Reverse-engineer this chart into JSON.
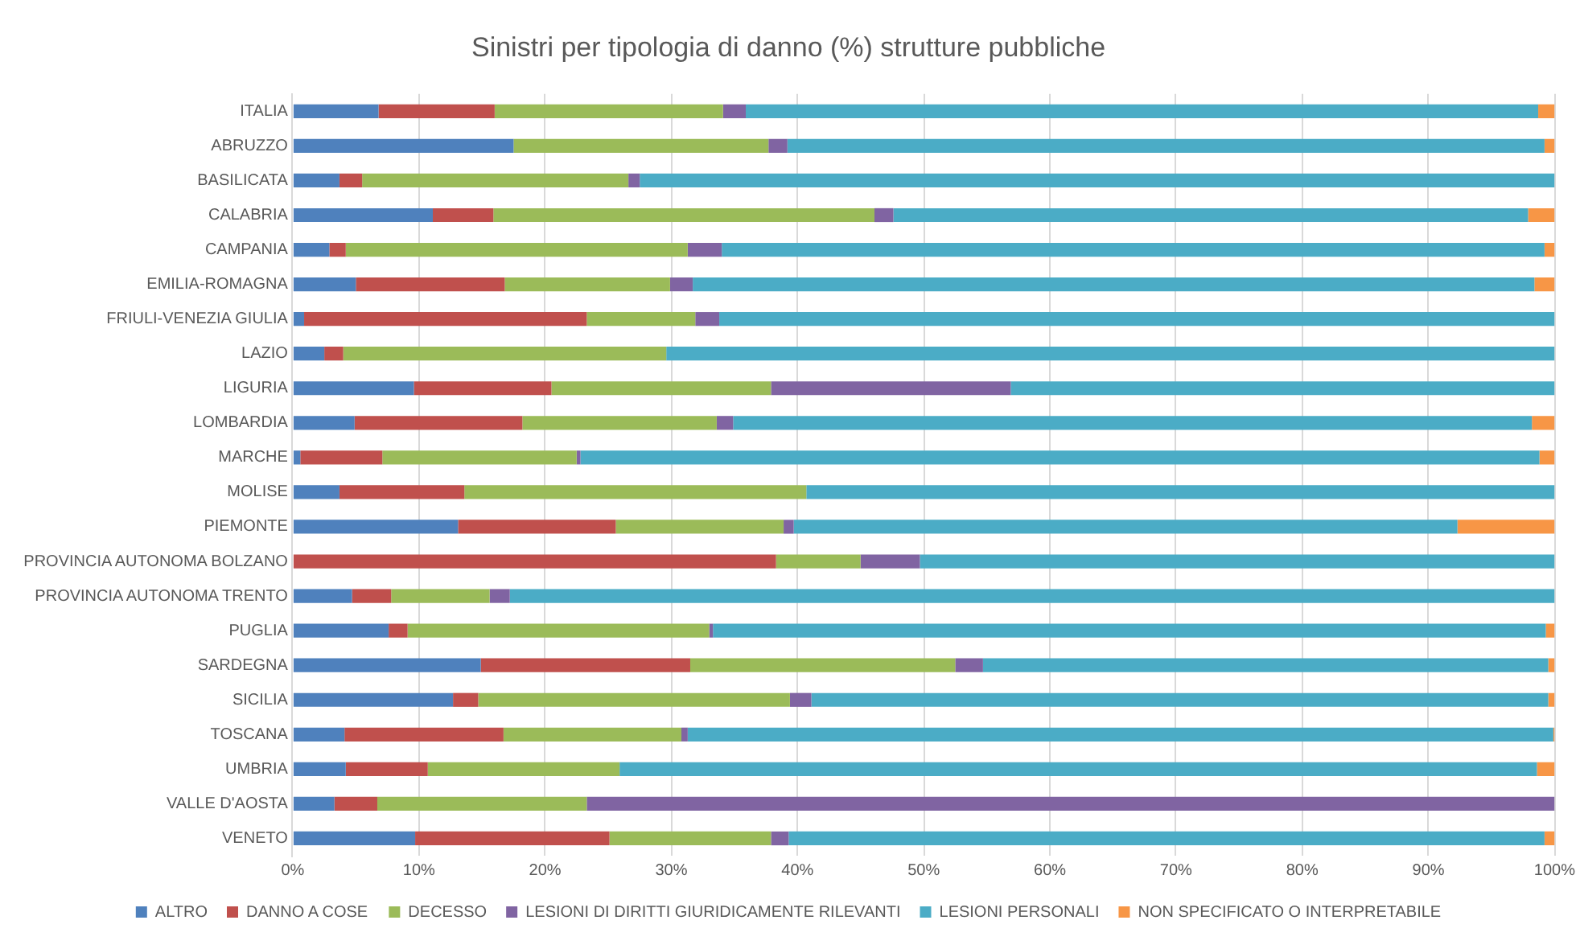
{
  "chart_data": {
    "type": "bar",
    "orientation": "horizontal",
    "stacked": true,
    "title": "Sinistri per tipologia di danno (%) strutture pubbliche",
    "categories": [
      "ITALIA",
      "ABRUZZO",
      "BASILICATA",
      "CALABRIA",
      "CAMPANIA",
      "EMILIA-ROMAGNA",
      "FRIULI-VENEZIA GIULIA",
      "LAZIO",
      "LIGURIA",
      "LOMBARDIA",
      "MARCHE",
      "MOLISE",
      "PIEMONTE",
      "PROVINCIA AUTONOMA BOLZANO",
      "PROVINCIA AUTONOMA TRENTO",
      "PUGLIA",
      "SARDEGNA",
      "SICILIA",
      "TOSCANA",
      "UMBRIA",
      "VALLE D'AOSTA",
      "VENETO"
    ],
    "series": [
      {
        "name": "ALTRO",
        "color": "#4f81bd",
        "values": [
          6.8,
          17.5,
          3.7,
          11.1,
          2.9,
          5.0,
          0.9,
          2.5,
          9.6,
          4.9,
          0.6,
          3.7,
          13.1,
          0,
          4.7,
          7.6,
          14.9,
          12.7,
          4.1,
          4.2,
          3.3,
          9.7
        ]
      },
      {
        "name": "DANNO A COSE",
        "color": "#c0504d",
        "values": [
          9.2,
          0,
          1.8,
          4.8,
          1.3,
          11.8,
          22.4,
          1.5,
          10.9,
          13.3,
          6.5,
          9.9,
          12.5,
          38.3,
          3.1,
          1.5,
          16.6,
          2.0,
          12.6,
          6.5,
          3.4,
          15.4
        ]
      },
      {
        "name": "DECESSO",
        "color": "#9bbb59",
        "values": [
          18.1,
          20.2,
          21.1,
          30.2,
          27.1,
          13.1,
          8.6,
          25.6,
          17.4,
          15.4,
          15.4,
          27.1,
          13.3,
          6.7,
          7.8,
          23.9,
          21.0,
          24.7,
          14.1,
          15.2,
          16.6,
          12.8
        ]
      },
      {
        "name": "LESIONI DI DIRITTI GIURIDICAMENTE RILEVANTI",
        "color": "#8064a2",
        "values": [
          1.8,
          1.5,
          0.9,
          1.5,
          2.7,
          1.8,
          1.9,
          0,
          19.0,
          1.3,
          0.3,
          0,
          0.8,
          4.7,
          1.6,
          0.3,
          2.2,
          1.7,
          0.5,
          0,
          76.7,
          1.4
        ]
      },
      {
        "name": "LESIONI PERSONALI",
        "color": "#4bacc6",
        "values": [
          62.8,
          60.0,
          72.5,
          50.3,
          65.2,
          66.7,
          66.2,
          70.4,
          43.1,
          63.3,
          76.0,
          59.3,
          52.6,
          50.3,
          82.8,
          66.0,
          44.8,
          58.4,
          68.6,
          72.7,
          0,
          59.9
        ]
      },
      {
        "name": "NON SPECIFICATO O INTERPRETABILE",
        "color": "#f79646",
        "values": [
          1.3,
          0.8,
          0,
          2.1,
          0.8,
          1.6,
          0,
          0,
          0,
          1.8,
          1.2,
          0,
          7.7,
          0,
          0,
          0.7,
          0.5,
          0.5,
          0.1,
          1.4,
          0,
          0.8
        ]
      }
    ],
    "xlim": [
      0,
      100
    ],
    "xticks": [
      {
        "value": 0,
        "label": "0%"
      },
      {
        "value": 10,
        "label": "10%"
      },
      {
        "value": 20,
        "label": "20%"
      },
      {
        "value": 30,
        "label": "30%"
      },
      {
        "value": 40,
        "label": "40%"
      },
      {
        "value": 50,
        "label": "50%"
      },
      {
        "value": 60,
        "label": "60%"
      },
      {
        "value": 70,
        "label": "70%"
      },
      {
        "value": 80,
        "label": "80%"
      },
      {
        "value": 90,
        "label": "90%"
      },
      {
        "value": 100,
        "label": "100%"
      }
    ],
    "grid": "x",
    "legend": "bottom"
  }
}
